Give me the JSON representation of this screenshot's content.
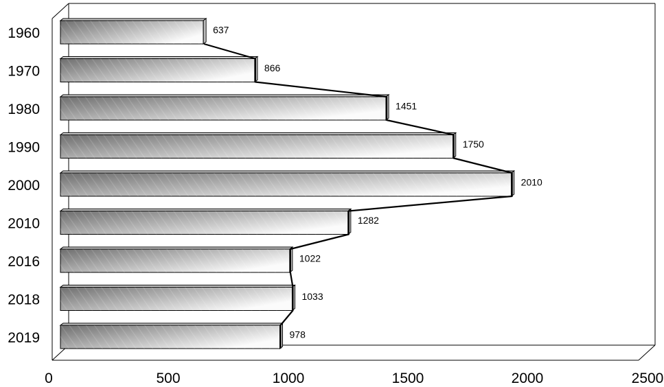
{
  "chart_data": {
    "type": "bar",
    "orientation": "horizontal",
    "categories": [
      "1960",
      "1970",
      "1980",
      "1990",
      "2000",
      "2010",
      "2016",
      "2018",
      "2019"
    ],
    "values": [
      637,
      866,
      1451,
      1750,
      2010,
      1282,
      1022,
      1033,
      978
    ],
    "data_labels": [
      "637",
      "866",
      "1451",
      "1750",
      "2010",
      "1282",
      "1022",
      "1033",
      "978"
    ],
    "x_ticks": [
      "0",
      "500",
      "1000",
      "1500",
      "2000",
      "2500"
    ],
    "xlim": [
      0,
      2500
    ],
    "title": "",
    "xlabel": "",
    "ylabel": "",
    "grid": false,
    "legend": "none",
    "connector_line": true,
    "bar_style": "3d gradient grey",
    "colors": {
      "bar_dark": "#6e6e6e",
      "bar_light": "#fbfbfb",
      "line": "#000000"
    }
  }
}
